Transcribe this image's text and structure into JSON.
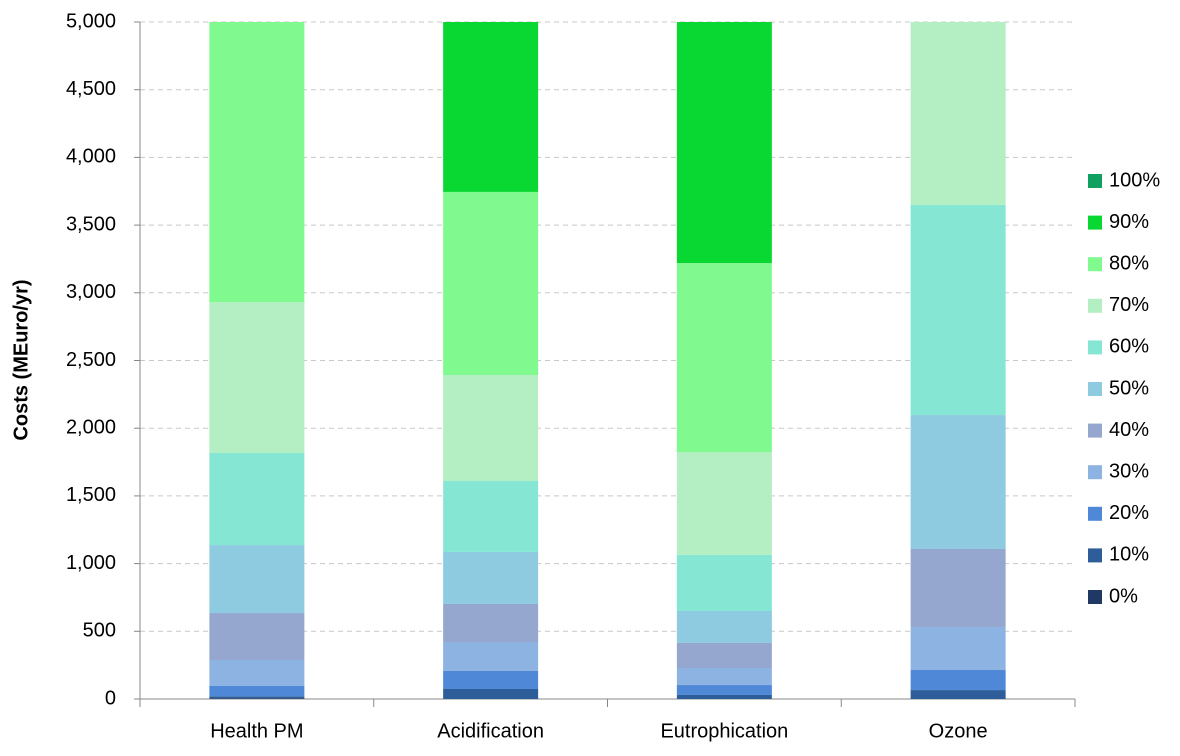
{
  "chart_data": {
    "type": "stacked_bar",
    "y_label": "Costs (MEuro/yr)",
    "categories": [
      "Health PM",
      "Acidification",
      "Eutrophication",
      "Ozone"
    ],
    "series": [
      {
        "name": "0%",
        "color": "#1f3864",
        "values": [
          5,
          0,
          0,
          0
        ]
      },
      {
        "name": "10%",
        "color": "#2e5e99",
        "values": [
          15,
          74,
          30,
          66
        ]
      },
      {
        "name": "20%",
        "color": "#4f88d6",
        "values": [
          76,
          133,
          73,
          148
        ]
      },
      {
        "name": "30%",
        "color": "#8db3e2",
        "values": [
          192,
          214,
          126,
          318
        ]
      },
      {
        "name": "40%",
        "color": "#95a7cf",
        "values": [
          347,
          281,
          185,
          576
        ]
      },
      {
        "name": "50%",
        "color": "#8ecae0",
        "values": [
          502,
          384,
          236,
          989
        ]
      },
      {
        "name": "60%",
        "color": "#86e6d4",
        "values": [
          680,
          524,
          414,
          1552
        ]
      },
      {
        "name": "70%",
        "color": "#b3efc2",
        "values": [
          1115,
          783,
          760,
          1351
        ]
      },
      {
        "name": "80%",
        "color": "#80f98f",
        "values": [
          2068,
          1352,
          1396,
          0
        ]
      },
      {
        "name": "90%",
        "color": "#0ad832",
        "values": [
          0,
          1255,
          1780,
          0
        ]
      },
      {
        "name": "100%",
        "color": "#10a060",
        "values": [
          0,
          0,
          0,
          0
        ]
      }
    ],
    "ylim": [
      0,
      5000
    ],
    "yticks": [
      0,
      500,
      {
        "value": 1000,
        "label": "1,000"
      },
      {
        "value": 1500,
        "label": "1,500"
      },
      {
        "value": 2000,
        "label": "2,000"
      },
      {
        "value": 2500,
        "label": "2,500"
      },
      {
        "value": 3000,
        "label": "3,000"
      },
      {
        "value": 3500,
        "label": "3,500"
      },
      {
        "value": 4000,
        "label": "4,000"
      },
      {
        "value": 4500,
        "label": "4,500"
      },
      {
        "value": 5000,
        "label": "5,000"
      }
    ],
    "grid": true
  }
}
